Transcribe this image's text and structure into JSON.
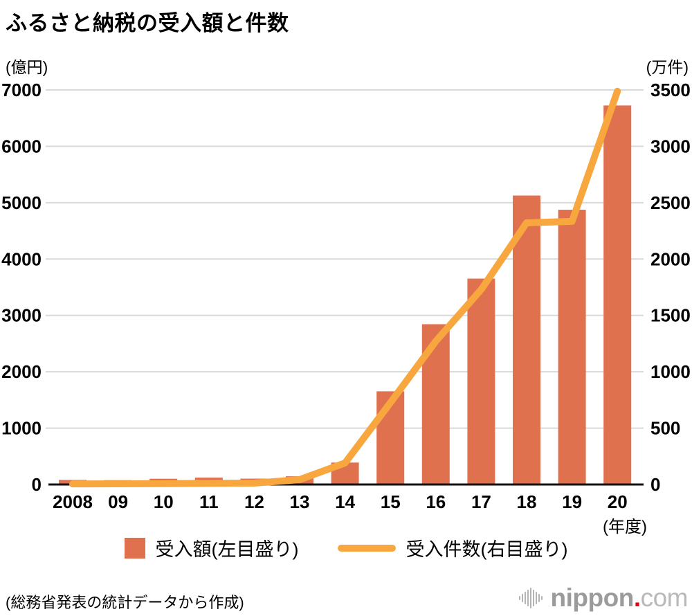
{
  "title": "ふるさと納税の受入額と件数",
  "chart_data": {
    "type": "bar",
    "title": "ふるさと納税の受入額と件数",
    "categories": [
      "2008",
      "09",
      "10",
      "11",
      "12",
      "13",
      "14",
      "15",
      "16",
      "17",
      "18",
      "19",
      "20"
    ],
    "x_axis_unit": "(年度)",
    "left_axis": {
      "unit": "(億円)",
      "min": 0,
      "max": 7000,
      "ticks": [
        7000,
        6000,
        5000,
        4000,
        3000,
        2000,
        1000,
        0
      ]
    },
    "right_axis": {
      "unit": "(万件)",
      "min": 0,
      "max": 3500,
      "ticks": [
        3500,
        3000,
        2500,
        2000,
        1500,
        1000,
        500,
        0
      ]
    },
    "series": [
      {
        "name": "受入額(左目盛り)",
        "type": "bar",
        "axis": "left",
        "color": "#E0714E",
        "values": [
          81,
          77,
          102,
          122,
          104,
          146,
          389,
          1653,
          2844,
          3653,
          5127,
          4875,
          6725
        ]
      },
      {
        "name": "受入件数(右目盛り)",
        "type": "line",
        "axis": "right",
        "color": "#F7A73E",
        "values": [
          5,
          6,
          8,
          10,
          12,
          43,
          191,
          726,
          1271,
          1730,
          2322,
          2334,
          3489
        ]
      }
    ],
    "grid": true,
    "legend_position": "bottom"
  },
  "colors": {
    "bar": "#E0714E",
    "line": "#F7A73E",
    "grid": "#D9D9D9",
    "axis": "#111111",
    "text": "#000000"
  },
  "footer": {
    "source_note": "(総務省発表の統計データから作成)",
    "logo": {
      "icon": "soundwave-bars-icon",
      "bold": "nippon",
      "dot": ".",
      "light": "com"
    }
  }
}
